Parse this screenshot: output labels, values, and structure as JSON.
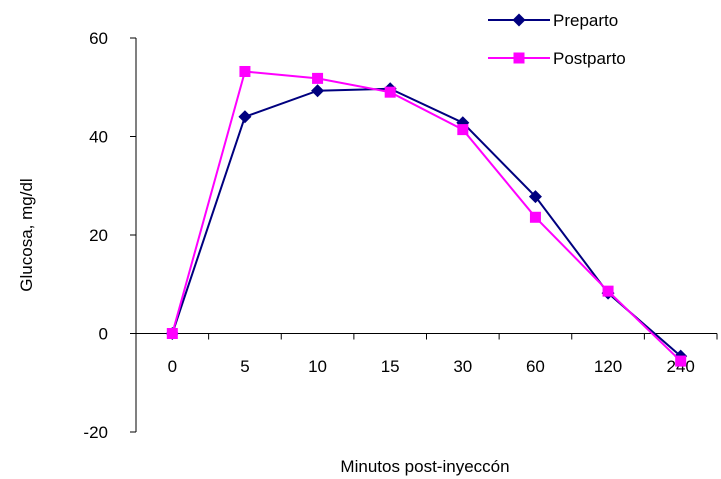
{
  "chart_data": {
    "type": "line",
    "categories": [
      "0",
      "5",
      "10",
      "15",
      "30",
      "60",
      "120",
      "240"
    ],
    "series": [
      {
        "name": "Preparto",
        "values": [
          0,
          44,
          49.3,
          49.7,
          42.8,
          27.8,
          8.2,
          -4.6
        ],
        "color": "#00007f",
        "marker": "diamond"
      },
      {
        "name": "Postparto",
        "values": [
          0,
          53.2,
          51.8,
          49,
          41.4,
          23.6,
          8.6,
          -5.6
        ],
        "color": "#ff00ff",
        "marker": "square"
      }
    ],
    "title": "",
    "xlabel": "Minutos post-inyeccón",
    "ylabel": "Glucosa, mg/dl",
    "ylim": [
      -20,
      60
    ],
    "yticks": [
      -20,
      0,
      20,
      40,
      60
    ],
    "grid": false,
    "legend_position": "top-right"
  }
}
